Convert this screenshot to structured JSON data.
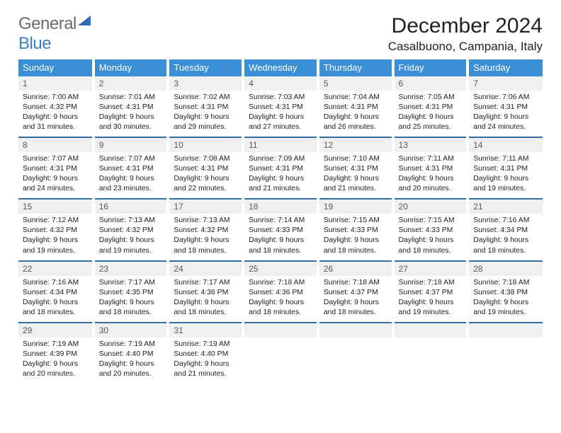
{
  "logo": {
    "word1": "General",
    "word2": "Blue"
  },
  "title": "December 2024",
  "location": "Casalbuono, Campania, Italy",
  "colors": {
    "header_bg": "#3b8fd4",
    "header_text": "#ffffff",
    "daynum_bg": "#eef0f2",
    "rule": "#326da3",
    "logo_gray": "#6a6a6a",
    "logo_blue": "#3b7fc4"
  },
  "weekdays": [
    "Sunday",
    "Monday",
    "Tuesday",
    "Wednesday",
    "Thursday",
    "Friday",
    "Saturday"
  ],
  "weeks": [
    [
      {
        "num": "1",
        "sunrise": "Sunrise: 7:00 AM",
        "sunset": "Sunset: 4:32 PM",
        "daylight1": "Daylight: 9 hours",
        "daylight2": "and 31 minutes."
      },
      {
        "num": "2",
        "sunrise": "Sunrise: 7:01 AM",
        "sunset": "Sunset: 4:31 PM",
        "daylight1": "Daylight: 9 hours",
        "daylight2": "and 30 minutes."
      },
      {
        "num": "3",
        "sunrise": "Sunrise: 7:02 AM",
        "sunset": "Sunset: 4:31 PM",
        "daylight1": "Daylight: 9 hours",
        "daylight2": "and 29 minutes."
      },
      {
        "num": "4",
        "sunrise": "Sunrise: 7:03 AM",
        "sunset": "Sunset: 4:31 PM",
        "daylight1": "Daylight: 9 hours",
        "daylight2": "and 27 minutes."
      },
      {
        "num": "5",
        "sunrise": "Sunrise: 7:04 AM",
        "sunset": "Sunset: 4:31 PM",
        "daylight1": "Daylight: 9 hours",
        "daylight2": "and 26 minutes."
      },
      {
        "num": "6",
        "sunrise": "Sunrise: 7:05 AM",
        "sunset": "Sunset: 4:31 PM",
        "daylight1": "Daylight: 9 hours",
        "daylight2": "and 25 minutes."
      },
      {
        "num": "7",
        "sunrise": "Sunrise: 7:06 AM",
        "sunset": "Sunset: 4:31 PM",
        "daylight1": "Daylight: 9 hours",
        "daylight2": "and 24 minutes."
      }
    ],
    [
      {
        "num": "8",
        "sunrise": "Sunrise: 7:07 AM",
        "sunset": "Sunset: 4:31 PM",
        "daylight1": "Daylight: 9 hours",
        "daylight2": "and 24 minutes."
      },
      {
        "num": "9",
        "sunrise": "Sunrise: 7:07 AM",
        "sunset": "Sunset: 4:31 PM",
        "daylight1": "Daylight: 9 hours",
        "daylight2": "and 23 minutes."
      },
      {
        "num": "10",
        "sunrise": "Sunrise: 7:08 AM",
        "sunset": "Sunset: 4:31 PM",
        "daylight1": "Daylight: 9 hours",
        "daylight2": "and 22 minutes."
      },
      {
        "num": "11",
        "sunrise": "Sunrise: 7:09 AM",
        "sunset": "Sunset: 4:31 PM",
        "daylight1": "Daylight: 9 hours",
        "daylight2": "and 21 minutes."
      },
      {
        "num": "12",
        "sunrise": "Sunrise: 7:10 AM",
        "sunset": "Sunset: 4:31 PM",
        "daylight1": "Daylight: 9 hours",
        "daylight2": "and 21 minutes."
      },
      {
        "num": "13",
        "sunrise": "Sunrise: 7:11 AM",
        "sunset": "Sunset: 4:31 PM",
        "daylight1": "Daylight: 9 hours",
        "daylight2": "and 20 minutes."
      },
      {
        "num": "14",
        "sunrise": "Sunrise: 7:11 AM",
        "sunset": "Sunset: 4:31 PM",
        "daylight1": "Daylight: 9 hours",
        "daylight2": "and 19 minutes."
      }
    ],
    [
      {
        "num": "15",
        "sunrise": "Sunrise: 7:12 AM",
        "sunset": "Sunset: 4:32 PM",
        "daylight1": "Daylight: 9 hours",
        "daylight2": "and 19 minutes."
      },
      {
        "num": "16",
        "sunrise": "Sunrise: 7:13 AM",
        "sunset": "Sunset: 4:32 PM",
        "daylight1": "Daylight: 9 hours",
        "daylight2": "and 19 minutes."
      },
      {
        "num": "17",
        "sunrise": "Sunrise: 7:13 AM",
        "sunset": "Sunset: 4:32 PM",
        "daylight1": "Daylight: 9 hours",
        "daylight2": "and 18 minutes."
      },
      {
        "num": "18",
        "sunrise": "Sunrise: 7:14 AM",
        "sunset": "Sunset: 4:33 PM",
        "daylight1": "Daylight: 9 hours",
        "daylight2": "and 18 minutes."
      },
      {
        "num": "19",
        "sunrise": "Sunrise: 7:15 AM",
        "sunset": "Sunset: 4:33 PM",
        "daylight1": "Daylight: 9 hours",
        "daylight2": "and 18 minutes."
      },
      {
        "num": "20",
        "sunrise": "Sunrise: 7:15 AM",
        "sunset": "Sunset: 4:33 PM",
        "daylight1": "Daylight: 9 hours",
        "daylight2": "and 18 minutes."
      },
      {
        "num": "21",
        "sunrise": "Sunrise: 7:16 AM",
        "sunset": "Sunset: 4:34 PM",
        "daylight1": "Daylight: 9 hours",
        "daylight2": "and 18 minutes."
      }
    ],
    [
      {
        "num": "22",
        "sunrise": "Sunrise: 7:16 AM",
        "sunset": "Sunset: 4:34 PM",
        "daylight1": "Daylight: 9 hours",
        "daylight2": "and 18 minutes."
      },
      {
        "num": "23",
        "sunrise": "Sunrise: 7:17 AM",
        "sunset": "Sunset: 4:35 PM",
        "daylight1": "Daylight: 9 hours",
        "daylight2": "and 18 minutes."
      },
      {
        "num": "24",
        "sunrise": "Sunrise: 7:17 AM",
        "sunset": "Sunset: 4:36 PM",
        "daylight1": "Daylight: 9 hours",
        "daylight2": "and 18 minutes."
      },
      {
        "num": "25",
        "sunrise": "Sunrise: 7:18 AM",
        "sunset": "Sunset: 4:36 PM",
        "daylight1": "Daylight: 9 hours",
        "daylight2": "and 18 minutes."
      },
      {
        "num": "26",
        "sunrise": "Sunrise: 7:18 AM",
        "sunset": "Sunset: 4:37 PM",
        "daylight1": "Daylight: 9 hours",
        "daylight2": "and 18 minutes."
      },
      {
        "num": "27",
        "sunrise": "Sunrise: 7:18 AM",
        "sunset": "Sunset: 4:37 PM",
        "daylight1": "Daylight: 9 hours",
        "daylight2": "and 19 minutes."
      },
      {
        "num": "28",
        "sunrise": "Sunrise: 7:18 AM",
        "sunset": "Sunset: 4:38 PM",
        "daylight1": "Daylight: 9 hours",
        "daylight2": "and 19 minutes."
      }
    ],
    [
      {
        "num": "29",
        "sunrise": "Sunrise: 7:19 AM",
        "sunset": "Sunset: 4:39 PM",
        "daylight1": "Daylight: 9 hours",
        "daylight2": "and 20 minutes."
      },
      {
        "num": "30",
        "sunrise": "Sunrise: 7:19 AM",
        "sunset": "Sunset: 4:40 PM",
        "daylight1": "Daylight: 9 hours",
        "daylight2": "and 20 minutes."
      },
      {
        "num": "31",
        "sunrise": "Sunrise: 7:19 AM",
        "sunset": "Sunset: 4:40 PM",
        "daylight1": "Daylight: 9 hours",
        "daylight2": "and 21 minutes."
      },
      {
        "empty": true
      },
      {
        "empty": true
      },
      {
        "empty": true
      },
      {
        "empty": true
      }
    ]
  ]
}
